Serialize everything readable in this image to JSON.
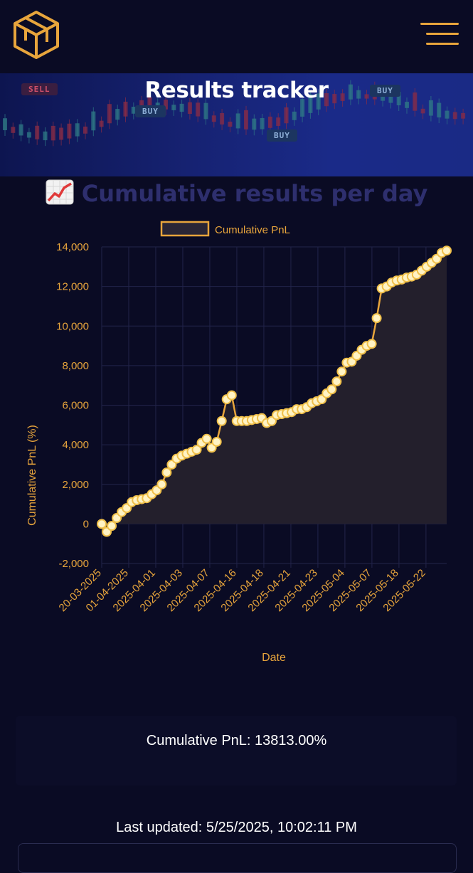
{
  "header": {
    "logo_icon": "cube-logo-icon",
    "menu_icon": "hamburger-menu-icon",
    "accent": "#e8a53c"
  },
  "banner": {
    "title": "Results tracker",
    "tags": [
      {
        "label": "SELL"
      },
      {
        "label": "BUY"
      },
      {
        "label": "BUY"
      },
      {
        "label": "BUY"
      }
    ]
  },
  "chart_section": {
    "emoji_icon": "chart-increasing-icon",
    "title": "Cumulative results per day"
  },
  "chart_data": {
    "type": "line",
    "title": "Cumulative results per day",
    "xlabel": "Date",
    "ylabel": "Cumulative PnL (%)",
    "ylim": [
      -2000,
      14000
    ],
    "yticks": [
      -2000,
      0,
      2000,
      4000,
      6000,
      8000,
      10000,
      12000,
      14000
    ],
    "ytick_labels": [
      "-2,000",
      "0",
      "2,000",
      "4,000",
      "6,000",
      "8,000",
      "10,000",
      "12,000",
      "14,000"
    ],
    "xtick_labels": [
      "20-03-2025",
      "01-04-2025",
      "2025-04-01",
      "2025-04-03",
      "2025-04-07",
      "2025-04-16",
      "2025-04-18",
      "2025-04-21",
      "2025-04-23",
      "2025-05-04",
      "2025-05-07",
      "2025-05-18",
      "2025-05-22"
    ],
    "grid": true,
    "legend_position": "top",
    "colors": {
      "line": "#e8a53c",
      "point_fill": "#fff3c4",
      "point_stroke": "#f0c04a",
      "area": "#231f2c"
    },
    "series": [
      {
        "name": "Cumulative PnL",
        "values": [
          0,
          -400,
          -100,
          300,
          600,
          800,
          1100,
          1200,
          1250,
          1300,
          1500,
          1700,
          2000,
          2600,
          3000,
          3300,
          3450,
          3550,
          3650,
          3750,
          4100,
          4300,
          3850,
          4150,
          5200,
          6300,
          6500,
          5200,
          5200,
          5200,
          5250,
          5300,
          5350,
          5100,
          5200,
          5500,
          5550,
          5600,
          5650,
          5800,
          5800,
          5900,
          6100,
          6200,
          6300,
          6600,
          6800,
          7200,
          7700,
          8150,
          8200,
          8500,
          8800,
          9000,
          9100,
          10400,
          11900,
          12000,
          12200,
          12300,
          12350,
          12450,
          12500,
          12600,
          12800,
          13000,
          13200,
          13400,
          13700,
          13813
        ]
      }
    ]
  },
  "summary": {
    "text": "Cumulative PnL: 13813.00%"
  },
  "footer": {
    "last_updated": "Last updated: 5/25/2025, 10:02:11 PM"
  }
}
